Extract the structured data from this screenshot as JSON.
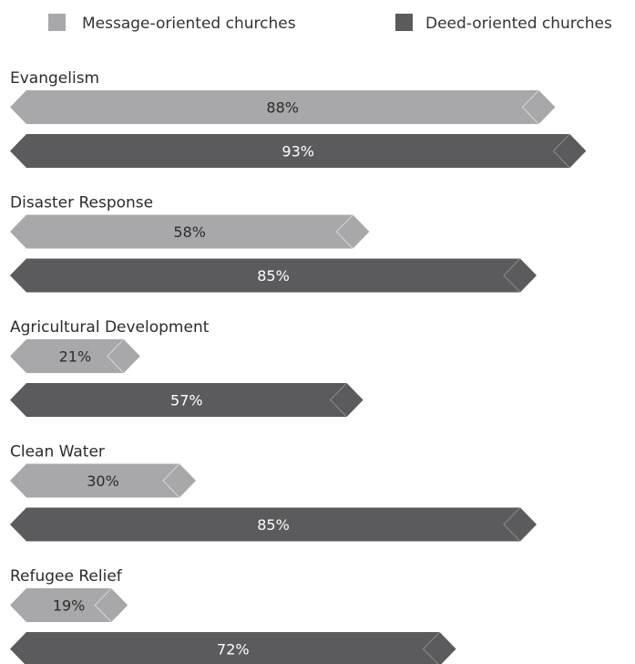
{
  "chart_data": {
    "type": "bar",
    "orientation": "horizontal",
    "categories": [
      "Evangelism",
      "Disaster Response",
      "Agricultural Development",
      "Clean Water",
      "Refugee Relief"
    ],
    "series": [
      {
        "name": "Message-oriented churches",
        "color": "#a8a8aa",
        "values": [
          88,
          58,
          21,
          30,
          19
        ]
      },
      {
        "name": "Deed-oriented churches",
        "color": "#5b5b5d",
        "values": [
          93,
          85,
          57,
          85,
          72
        ]
      }
    ],
    "value_labels": [
      [
        "88%",
        "58%",
        "21%",
        "30%",
        "19%"
      ],
      [
        "93%",
        "85%",
        "57%",
        "85%",
        "72%"
      ]
    ],
    "unit": "%",
    "xlim": [
      0,
      100
    ],
    "legend": "top",
    "grid": false
  }
}
